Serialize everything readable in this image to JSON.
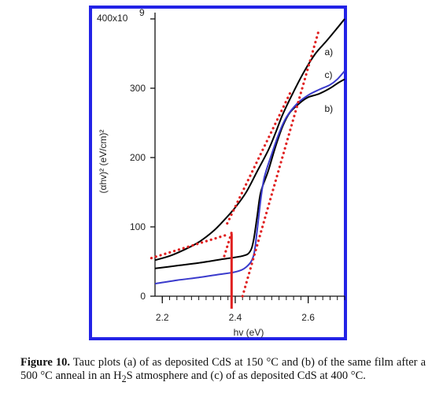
{
  "colors": {
    "frame": "#2323e6",
    "curve_a": "#000000",
    "curve_b": "#000000",
    "curve_c": "#3a3acc",
    "fit": "#e02020",
    "marker": "#e02020"
  },
  "caption": {
    "label": "Figure 10.",
    "part1": " Tauc plots (a) of as deposited CdS at 150 °C and (b) of the same film after a 500 °C anneal in an H",
    "subscript": "2",
    "part2": "S atmosphere and (c) of as deposited CdS at 400 °C."
  },
  "chart_data": {
    "type": "line",
    "xlabel": "hv (eV)",
    "ylabel": "(αhv)² (eV/cm)²",
    "xlim": [
      2.18,
      2.7
    ],
    "ylim": [
      0,
      400
    ],
    "y_top_tick_label": "400x10",
    "y_top_tick_exponent": "9",
    "x_ticks": [
      2.2,
      2.4,
      2.6
    ],
    "x_tick_labels": [
      "2.2",
      "2.4",
      "2.6"
    ],
    "x_minor_step": 0.02,
    "y_ticks": [
      0,
      100,
      200,
      300
    ],
    "y_tick_labels": [
      "0",
      "100",
      "200",
      "300"
    ],
    "series": [
      {
        "name": "a)",
        "color": "#000000",
        "points": [
          [
            2.18,
            52
          ],
          [
            2.22,
            58
          ],
          [
            2.26,
            67
          ],
          [
            2.3,
            78
          ],
          [
            2.34,
            94
          ],
          [
            2.37,
            110
          ],
          [
            2.4,
            128
          ],
          [
            2.43,
            150
          ],
          [
            2.46,
            180
          ],
          [
            2.49,
            210
          ],
          [
            2.51,
            235
          ],
          [
            2.53,
            262
          ],
          [
            2.56,
            295
          ],
          [
            2.59,
            325
          ],
          [
            2.62,
            350
          ],
          [
            2.65,
            368
          ],
          [
            2.68,
            387
          ],
          [
            2.7,
            400
          ]
        ]
      },
      {
        "name": "b)",
        "color": "#000000",
        "points": [
          [
            2.18,
            40
          ],
          [
            2.24,
            44
          ],
          [
            2.3,
            48
          ],
          [
            2.36,
            53
          ],
          [
            2.42,
            58
          ],
          [
            2.44,
            64
          ],
          [
            2.45,
            80
          ],
          [
            2.46,
            115
          ],
          [
            2.47,
            150
          ],
          [
            2.49,
            180
          ],
          [
            2.51,
            215
          ],
          [
            2.53,
            245
          ],
          [
            2.55,
            265
          ],
          [
            2.58,
            280
          ],
          [
            2.6,
            287
          ],
          [
            2.63,
            292
          ],
          [
            2.66,
            300
          ],
          [
            2.68,
            307
          ],
          [
            2.7,
            313
          ]
        ]
      },
      {
        "name": "c)",
        "color": "#3a3acc",
        "points": [
          [
            2.18,
            18
          ],
          [
            2.24,
            23
          ],
          [
            2.3,
            27
          ],
          [
            2.35,
            31
          ],
          [
            2.4,
            35
          ],
          [
            2.43,
            42
          ],
          [
            2.45,
            58
          ],
          [
            2.46,
            95
          ],
          [
            2.47,
            140
          ],
          [
            2.48,
            172
          ],
          [
            2.5,
            205
          ],
          [
            2.52,
            235
          ],
          [
            2.54,
            258
          ],
          [
            2.57,
            278
          ],
          [
            2.6,
            290
          ],
          [
            2.63,
            298
          ],
          [
            2.66,
            305
          ],
          [
            2.68,
            313
          ],
          [
            2.7,
            325
          ]
        ]
      }
    ],
    "fit_lines": [
      [
        [
          2.17,
          55
        ],
        [
          2.38,
          89
        ]
      ],
      [
        [
          2.42,
          0
        ],
        [
          2.63,
          385
        ]
      ],
      [
        [
          2.378,
          105
        ],
        [
          2.555,
          298
        ]
      ],
      [
        [
          2.37,
          58
        ],
        [
          2.39,
          92
        ]
      ]
    ],
    "marker_x": 2.39,
    "marker_y_range": [
      -18,
      90
    ],
    "curve_labels": [
      {
        "text": "a)",
        "x": 2.645,
        "y": 348
      },
      {
        "text": "c)",
        "x": 2.645,
        "y": 315
      },
      {
        "text": "b)",
        "x": 2.645,
        "y": 266
      }
    ]
  }
}
